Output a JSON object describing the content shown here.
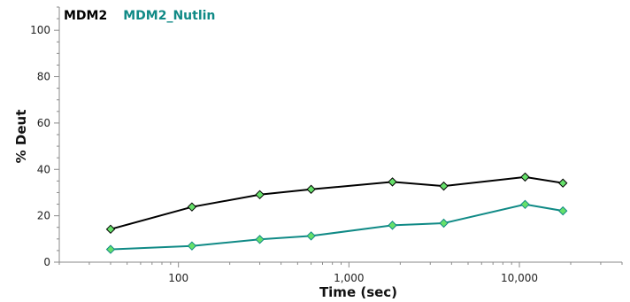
{
  "chart_data": {
    "type": "line",
    "xlabel": "Time (sec)",
    "ylabel": "% Deut",
    "x_scale": "log",
    "xlim": [
      20,
      40000
    ],
    "ylim": [
      0,
      110
    ],
    "x_ticks": [
      100,
      1000,
      10000
    ],
    "x_tick_labels": [
      "100",
      "1,000",
      "10,000"
    ],
    "y_ticks": [
      0,
      20,
      40,
      60,
      80,
      100
    ],
    "y_tick_labels": [
      "0",
      "20",
      "40",
      "60",
      "80",
      "100"
    ],
    "grid": false,
    "legend_position": "top-left",
    "marker_color": "#66e06a",
    "series": [
      {
        "name": "MDM2",
        "color": "#000000",
        "x": [
          40,
          120,
          300,
          600,
          1800,
          3600,
          10800,
          18000
        ],
        "y": [
          14.2,
          23.8,
          29.1,
          31.4,
          34.6,
          32.8,
          36.7,
          34.1
        ]
      },
      {
        "name": "MDM2_Nutlin",
        "color": "#108a86",
        "x": [
          40,
          120,
          300,
          600,
          1800,
          3600,
          10800,
          18000
        ],
        "y": [
          5.5,
          7.0,
          9.8,
          11.3,
          15.9,
          16.8,
          24.9,
          22.1
        ]
      }
    ]
  }
}
